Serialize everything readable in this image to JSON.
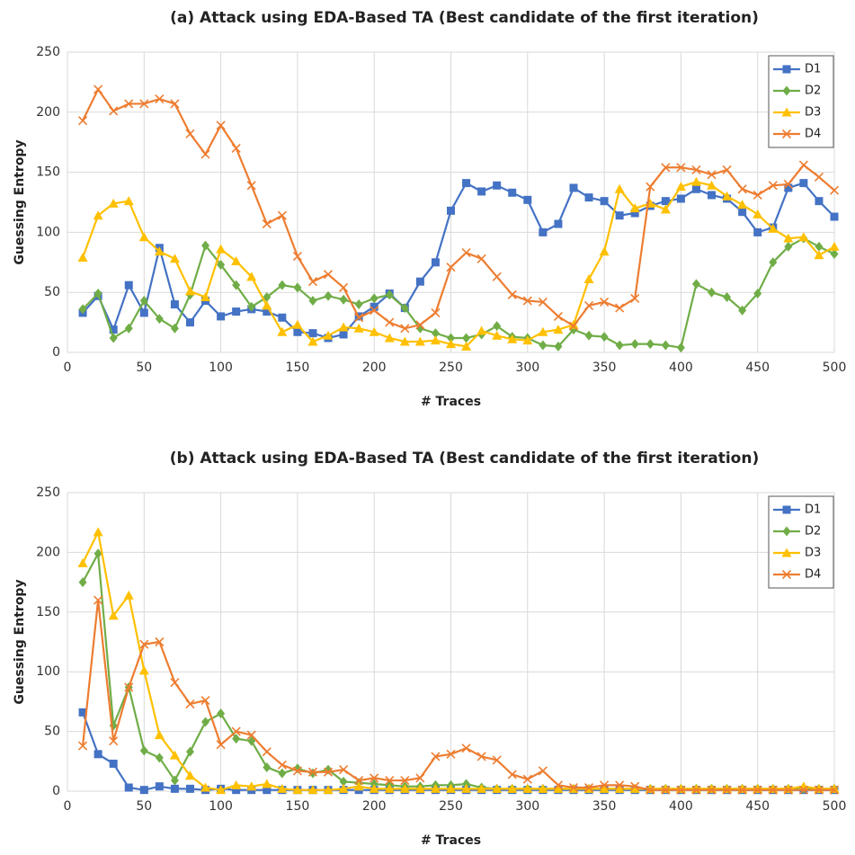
{
  "chart_data": [
    {
      "type": "line",
      "title": "(a) Attack using EDA-Based TA (Best candidate of the first iteration)",
      "x_label": "# Traces",
      "y_label": "Guessing Entropy",
      "x": [
        10,
        20,
        30,
        40,
        50,
        60,
        70,
        80,
        90,
        100,
        110,
        120,
        130,
        140,
        150,
        160,
        170,
        180,
        190,
        200,
        210,
        220,
        230,
        240,
        250,
        260,
        270,
        280,
        290,
        300,
        310,
        320,
        330,
        340,
        350,
        360,
        370,
        380,
        390,
        400,
        410,
        420,
        430,
        440,
        450,
        460,
        470,
        480,
        490,
        500
      ],
      "series": [
        {
          "name": "D1",
          "color": "#4472c4",
          "marker": "square",
          "values": [
            33,
            47,
            19,
            56,
            33,
            87,
            40,
            25,
            43,
            30,
            34,
            36,
            34,
            29,
            17,
            16,
            12,
            15,
            30,
            38,
            49,
            37,
            59,
            75,
            118,
            141,
            134,
            139,
            133,
            127,
            100,
            107,
            137,
            129,
            126,
            114,
            116,
            122,
            126,
            128,
            136,
            131,
            128,
            117,
            100,
            104,
            137,
            141,
            126,
            113
          ]
        },
        {
          "name": "D2",
          "color": "#70ad47",
          "marker": "diamond",
          "values": [
            36,
            49,
            12,
            20,
            43,
            28,
            20,
            48,
            89,
            73,
            56,
            38,
            46,
            56,
            54,
            43,
            47,
            44,
            40,
            45,
            48,
            37,
            20,
            16,
            12,
            12,
            15,
            22,
            13,
            12,
            6,
            5,
            19,
            14,
            13,
            6,
            7,
            7,
            6,
            4,
            57,
            50,
            46,
            35,
            49,
            75,
            88,
            95,
            88,
            82
          ]
        },
        {
          "name": "D3",
          "color": "#ffc000",
          "marker": "triangle",
          "values": [
            79,
            114,
            124,
            126,
            96,
            84,
            78,
            51,
            46,
            86,
            76,
            63,
            39,
            17,
            23,
            9,
            14,
            21,
            20,
            17,
            12,
            9,
            9,
            10,
            7,
            5,
            18,
            14,
            11,
            10,
            17,
            19,
            23,
            61,
            84,
            136,
            120,
            124,
            119,
            138,
            142,
            139,
            130,
            123,
            115,
            103,
            95,
            96,
            81,
            88
          ]
        },
        {
          "name": "D4",
          "color": "#ed7d31",
          "marker": "x",
          "values": [
            193,
            219,
            201,
            207,
            207,
            211,
            207,
            182,
            165,
            189,
            170,
            139,
            107,
            114,
            80,
            59,
            65,
            54,
            29,
            35,
            25,
            20,
            23,
            33,
            71,
            83,
            78,
            63,
            48,
            43,
            42,
            30,
            22,
            39,
            42,
            37,
            45,
            138,
            154,
            154,
            152,
            148,
            152,
            136,
            131,
            139,
            140,
            156,
            146,
            135
          ]
        }
      ],
      "xlim": [
        0,
        500
      ],
      "ylim": [
        0,
        250
      ],
      "xticks": [
        0,
        50,
        100,
        150,
        200,
        250,
        300,
        350,
        400,
        450,
        500
      ],
      "yticks": [
        0,
        50,
        100,
        150,
        200,
        250
      ],
      "grid": true,
      "legend": "upper right"
    },
    {
      "type": "line",
      "title": "(b) Attack using EDA-Based TA (Best candidate of the first iteration)",
      "x_label": "# Traces",
      "y_label": "Guessing Entropy",
      "x": [
        10,
        20,
        30,
        40,
        50,
        60,
        70,
        80,
        90,
        100,
        110,
        120,
        130,
        140,
        150,
        160,
        170,
        180,
        190,
        200,
        210,
        220,
        230,
        240,
        250,
        260,
        270,
        280,
        290,
        300,
        310,
        320,
        330,
        340,
        350,
        360,
        370,
        380,
        390,
        400,
        410,
        420,
        430,
        440,
        450,
        460,
        470,
        480,
        490,
        500
      ],
      "series": [
        {
          "name": "D1",
          "color": "#4472c4",
          "marker": "square",
          "values": [
            66,
            31,
            23,
            3,
            1,
            4,
            2,
            2,
            1,
            2,
            1,
            1,
            1,
            1,
            1,
            1,
            1,
            1,
            1,
            1,
            1,
            1,
            1,
            1,
            1,
            1,
            1,
            1,
            1,
            1,
            1,
            1,
            1,
            1,
            1,
            1,
            1,
            1,
            1,
            1,
            1,
            1,
            1,
            1,
            1,
            1,
            1,
            1,
            1,
            1
          ]
        },
        {
          "name": "D2",
          "color": "#70ad47",
          "marker": "diamond",
          "values": [
            175,
            199,
            55,
            87,
            34,
            28,
            9,
            33,
            58,
            65,
            44,
            42,
            20,
            15,
            19,
            15,
            18,
            8,
            7,
            6,
            5,
            4,
            4,
            5,
            5,
            6,
            3,
            2,
            2,
            2,
            2,
            2,
            2,
            2,
            2,
            2,
            2,
            2,
            2,
            2,
            2,
            2,
            2,
            2,
            2,
            2,
            2,
            2,
            2,
            2
          ]
        },
        {
          "name": "D3",
          "color": "#ffc000",
          "marker": "triangle",
          "values": [
            191,
            217,
            147,
            164,
            101,
            47,
            30,
            13,
            3,
            1,
            5,
            4,
            6,
            2,
            1,
            1,
            1,
            2,
            4,
            2,
            2,
            2,
            2,
            2,
            2,
            2,
            2,
            2,
            2,
            2,
            2,
            2,
            2,
            2,
            2,
            2,
            2,
            2,
            2,
            2,
            2,
            2,
            2,
            2,
            2,
            2,
            2,
            4,
            2,
            2
          ]
        },
        {
          "name": "D4",
          "color": "#ed7d31",
          "marker": "x",
          "values": [
            38,
            160,
            42,
            87,
            123,
            125,
            91,
            73,
            76,
            39,
            50,
            47,
            33,
            22,
            17,
            16,
            16,
            18,
            9,
            11,
            9,
            9,
            11,
            29,
            31,
            36,
            29,
            26,
            14,
            10,
            17,
            5,
            3,
            3,
            5,
            5,
            4,
            1,
            1,
            1,
            1,
            1,
            1,
            1,
            1,
            1,
            1,
            1,
            1,
            1
          ]
        }
      ],
      "xlim": [
        0,
        500
      ],
      "ylim": [
        0,
        250
      ],
      "xticks": [
        0,
        50,
        100,
        150,
        200,
        250,
        300,
        350,
        400,
        450,
        500
      ],
      "yticks": [
        0,
        50,
        100,
        150,
        200,
        250
      ],
      "grid": true,
      "legend": "upper right"
    }
  ]
}
